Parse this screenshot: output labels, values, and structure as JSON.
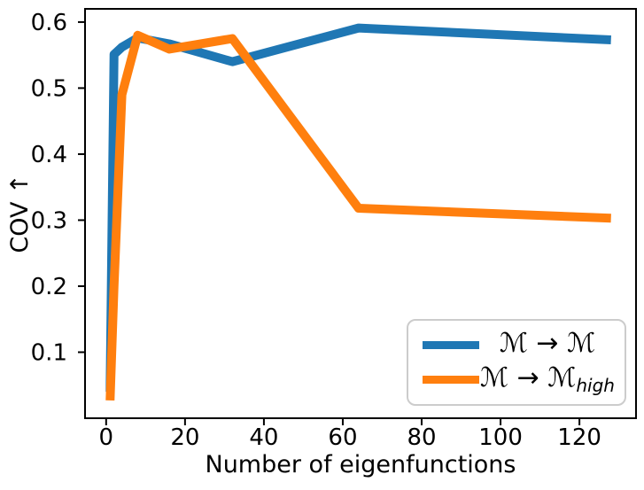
{
  "chart_data": {
    "type": "line",
    "title": "",
    "xlabel": "Number of eigenfunctions",
    "ylabel": "COV ↑",
    "grid": false,
    "legend_position": "lower right",
    "xlim": [
      -5.35,
      134.35
    ],
    "ylim": [
      0,
      0.62
    ],
    "x_ticks": [
      0,
      20,
      40,
      60,
      80,
      100,
      120
    ],
    "y_ticks": [
      0.1,
      0.2,
      0.3,
      0.4,
      0.5,
      0.6
    ],
    "x": [
      1,
      2,
      4,
      8,
      16,
      32,
      64,
      128
    ],
    "series": [
      {
        "key": "m-to-m",
        "name": "ℳ → ℳ",
        "color": "#1f77b4",
        "values": [
          0.04,
          0.551,
          0.562,
          0.576,
          0.567,
          0.54,
          0.591,
          0.573
        ]
      },
      {
        "key": "m-to-m-high",
        "name": "ℳ → ℳ_high",
        "color": "#ff7f0e",
        "values": [
          0.027,
          0.2,
          0.49,
          0.58,
          0.559,
          0.575,
          0.318,
          0.303
        ]
      }
    ]
  },
  "legend": {
    "items": [
      {
        "label_main": "ℳ → ℳ",
        "label_sub": "",
        "color": "#1f77b4"
      },
      {
        "label_main": "ℳ → ℳ",
        "label_sub": "high",
        "color": "#ff7f0e"
      }
    ]
  }
}
